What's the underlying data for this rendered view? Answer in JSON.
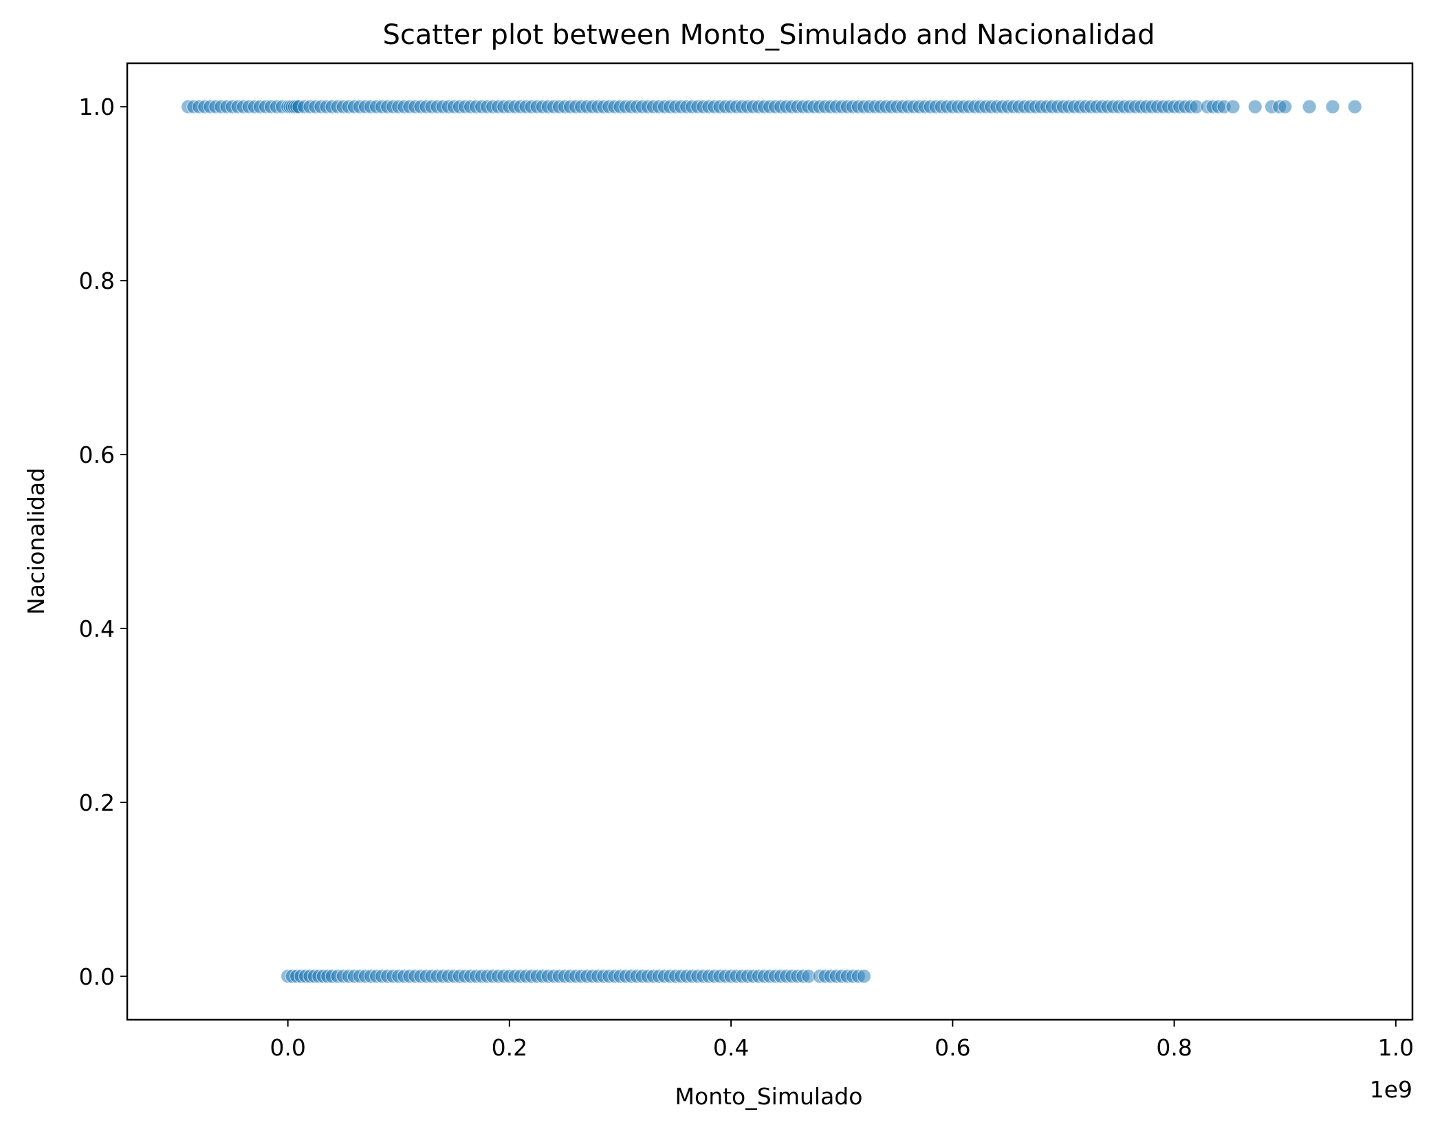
{
  "chart_data": {
    "type": "scatter",
    "title": "Scatter plot between Monto_Simulado and Nacionalidad",
    "xlabel": "Monto_Simulado",
    "ylabel": "Nacionalidad",
    "x_offset_label": "1e9",
    "xlim": [
      -0.145,
      1.015
    ],
    "ylim": [
      -0.05,
      1.05
    ],
    "x_ticks": [
      0.0,
      0.2,
      0.4,
      0.6,
      0.8,
      1.0
    ],
    "x_tick_labels": [
      "0.0",
      "0.2",
      "0.4",
      "0.6",
      "0.8",
      "1.0"
    ],
    "y_ticks": [
      0.0,
      0.2,
      0.4,
      0.6,
      0.8,
      1.0
    ],
    "y_tick_labels": [
      "0.0",
      "0.2",
      "0.4",
      "0.6",
      "0.8",
      "1.0"
    ],
    "grid": false,
    "legend": "none",
    "series": [
      {
        "y": 1.0,
        "x_range": [
          -0.09,
          0.963
        ],
        "x_sample": [
          -0.09,
          -0.085,
          -0.08,
          -0.075,
          -0.07,
          -0.065,
          -0.06,
          -0.055,
          -0.05,
          -0.045,
          -0.04,
          -0.035,
          -0.03,
          -0.025,
          -0.02,
          -0.015,
          -0.01,
          -0.005,
          0.0,
          0.002,
          0.004,
          0.006,
          0.008,
          0.01,
          0.015,
          0.02,
          0.025,
          0.03,
          0.035,
          0.04,
          0.045,
          0.05,
          0.055,
          0.06,
          0.065,
          0.07,
          0.075,
          0.08,
          0.085,
          0.09,
          0.095,
          0.1,
          0.105,
          0.11,
          0.115,
          0.12,
          0.125,
          0.13,
          0.135,
          0.14,
          0.145,
          0.15,
          0.155,
          0.16,
          0.165,
          0.17,
          0.175,
          0.18,
          0.185,
          0.19,
          0.195,
          0.2,
          0.205,
          0.21,
          0.215,
          0.22,
          0.225,
          0.23,
          0.235,
          0.24,
          0.245,
          0.25,
          0.255,
          0.26,
          0.265,
          0.27,
          0.275,
          0.28,
          0.285,
          0.29,
          0.295,
          0.3,
          0.305,
          0.31,
          0.315,
          0.32,
          0.325,
          0.33,
          0.335,
          0.34,
          0.345,
          0.35,
          0.355,
          0.36,
          0.365,
          0.37,
          0.375,
          0.38,
          0.385,
          0.39,
          0.395,
          0.4,
          0.405,
          0.41,
          0.415,
          0.42,
          0.425,
          0.43,
          0.435,
          0.44,
          0.445,
          0.45,
          0.455,
          0.46,
          0.465,
          0.47,
          0.475,
          0.48,
          0.485,
          0.49,
          0.495,
          0.5,
          0.505,
          0.51,
          0.515,
          0.52,
          0.525,
          0.53,
          0.535,
          0.54,
          0.545,
          0.55,
          0.555,
          0.56,
          0.565,
          0.57,
          0.575,
          0.58,
          0.585,
          0.59,
          0.595,
          0.6,
          0.605,
          0.61,
          0.615,
          0.62,
          0.625,
          0.63,
          0.635,
          0.64,
          0.645,
          0.65,
          0.655,
          0.66,
          0.665,
          0.67,
          0.675,
          0.68,
          0.685,
          0.69,
          0.695,
          0.7,
          0.705,
          0.71,
          0.715,
          0.72,
          0.725,
          0.73,
          0.735,
          0.74,
          0.745,
          0.75,
          0.755,
          0.76,
          0.765,
          0.77,
          0.775,
          0.78,
          0.785,
          0.79,
          0.795,
          0.8,
          0.805,
          0.81,
          0.815,
          0.82,
          0.83,
          0.835,
          0.84,
          0.845,
          0.853,
          0.873,
          0.888,
          0.895,
          0.9,
          0.922,
          0.943,
          0.963
        ]
      },
      {
        "y": 0.0,
        "x_range": [
          0.0,
          0.52
        ],
        "x_sample": [
          0.0,
          0.004,
          0.008,
          0.012,
          0.016,
          0.02,
          0.024,
          0.028,
          0.032,
          0.036,
          0.04,
          0.045,
          0.05,
          0.055,
          0.06,
          0.065,
          0.07,
          0.075,
          0.08,
          0.085,
          0.09,
          0.095,
          0.1,
          0.105,
          0.11,
          0.115,
          0.12,
          0.125,
          0.13,
          0.135,
          0.14,
          0.145,
          0.15,
          0.155,
          0.16,
          0.165,
          0.17,
          0.175,
          0.18,
          0.185,
          0.19,
          0.195,
          0.2,
          0.205,
          0.21,
          0.215,
          0.22,
          0.225,
          0.23,
          0.235,
          0.24,
          0.245,
          0.25,
          0.255,
          0.26,
          0.265,
          0.27,
          0.275,
          0.28,
          0.285,
          0.29,
          0.295,
          0.3,
          0.305,
          0.31,
          0.315,
          0.32,
          0.325,
          0.33,
          0.335,
          0.34,
          0.345,
          0.35,
          0.355,
          0.36,
          0.365,
          0.37,
          0.375,
          0.38,
          0.385,
          0.39,
          0.395,
          0.4,
          0.405,
          0.41,
          0.415,
          0.42,
          0.425,
          0.43,
          0.435,
          0.44,
          0.445,
          0.45,
          0.455,
          0.46,
          0.465,
          0.47,
          0.48,
          0.485,
          0.49,
          0.495,
          0.5,
          0.505,
          0.51,
          0.515,
          0.52
        ]
      }
    ],
    "marker_color": "#1f77b4",
    "marker_alpha": 0.5,
    "edge_color": "#ffffff"
  }
}
